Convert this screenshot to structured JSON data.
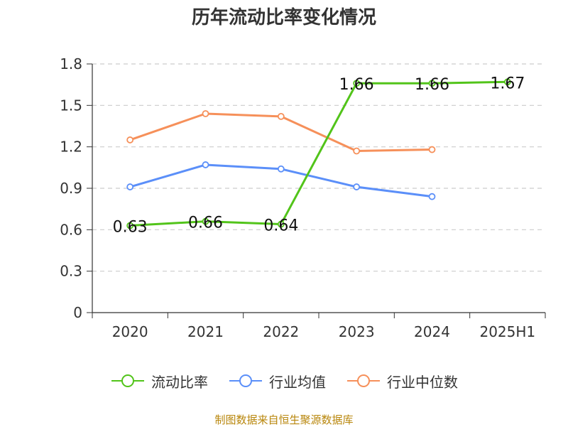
{
  "chart_data": {
    "type": "line",
    "title": "历年流动比率变化情况",
    "categories": [
      "2020",
      "2021",
      "2022",
      "2023",
      "2024",
      "2025H1"
    ],
    "ylim": [
      0,
      1.8
    ],
    "yticks": [
      "0",
      "0.3",
      "0.6",
      "0.9",
      "1.2",
      "1.5",
      "1.8"
    ],
    "ytick_values": [
      0,
      0.3,
      0.6,
      0.9,
      1.2,
      1.5,
      1.8
    ],
    "grid": true,
    "legend_position": "bottom",
    "series": [
      {
        "name": "流动比率",
        "color": "#52c41a",
        "values": [
          0.63,
          0.66,
          0.64,
          1.66,
          1.66,
          1.67
        ],
        "labels": [
          "0.63",
          "0.66",
          "0.64",
          "1.66",
          "1.66",
          "1.67"
        ]
      },
      {
        "name": "行业均值",
        "color": "#5b8ff9",
        "values": [
          0.91,
          1.07,
          1.04,
          0.91,
          0.84,
          null
        ]
      },
      {
        "name": "行业中位数",
        "color": "#f6905a",
        "values": [
          1.25,
          1.44,
          1.42,
          1.17,
          1.18,
          null
        ]
      }
    ]
  },
  "source_note": "制图数据来自恒生聚源数据库"
}
